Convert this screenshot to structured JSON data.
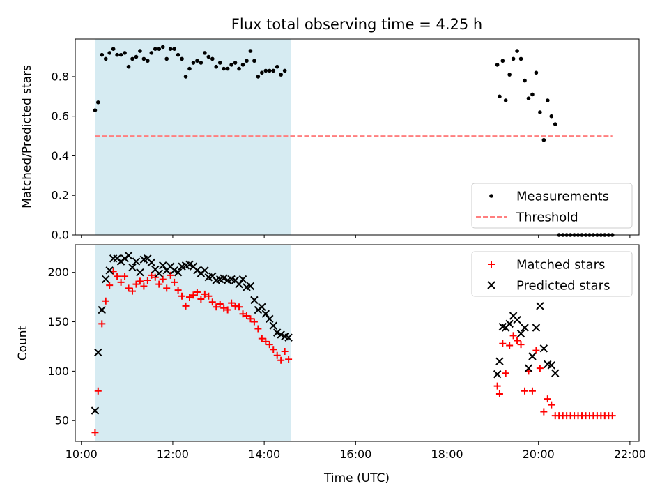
{
  "chart_data": [
    {
      "type": "scatter",
      "title": "Flux total observing time = 4.25 h",
      "xlabel": "",
      "ylabel": "Matched/Predicted stars",
      "xlim": [
        "09:52",
        "22:12"
      ],
      "ylim": [
        0.0,
        0.99
      ],
      "yticks": [
        0.0,
        0.2,
        0.4,
        0.6,
        0.8
      ],
      "xticks": [
        "10:00",
        "12:00",
        "14:00",
        "16:00",
        "18:00",
        "20:00",
        "22:00"
      ],
      "show_x_tick_labels": false,
      "shaded_span": {
        "start": "10:18",
        "end": "14:35",
        "color": "#add8e6",
        "opacity": 0.5
      },
      "legend_position": "lower-right",
      "series": [
        {
          "name": "Measurements",
          "kind": "points",
          "color": "#000000",
          "points": [
            [
              "10:18",
              0.63
            ],
            [
              "10:22",
              0.67
            ],
            [
              "10:27",
              0.91
            ],
            [
              "10:32",
              0.89
            ],
            [
              "10:37",
              0.92
            ],
            [
              "10:42",
              0.94
            ],
            [
              "10:47",
              0.91
            ],
            [
              "10:52",
              0.91
            ],
            [
              "10:57",
              0.92
            ],
            [
              "11:02",
              0.85
            ],
            [
              "11:07",
              0.89
            ],
            [
              "11:12",
              0.9
            ],
            [
              "11:17",
              0.93
            ],
            [
              "11:22",
              0.89
            ],
            [
              "11:27",
              0.88
            ],
            [
              "11:32",
              0.92
            ],
            [
              "11:37",
              0.94
            ],
            [
              "11:42",
              0.94
            ],
            [
              "11:47",
              0.95
            ],
            [
              "11:52",
              0.89
            ],
            [
              "11:57",
              0.94
            ],
            [
              "12:02",
              0.94
            ],
            [
              "12:07",
              0.91
            ],
            [
              "12:12",
              0.89
            ],
            [
              "12:17",
              0.8
            ],
            [
              "12:22",
              0.84
            ],
            [
              "12:27",
              0.87
            ],
            [
              "12:32",
              0.88
            ],
            [
              "12:37",
              0.87
            ],
            [
              "12:42",
              0.92
            ],
            [
              "12:47",
              0.9
            ],
            [
              "12:52",
              0.89
            ],
            [
              "12:57",
              0.85
            ],
            [
              "13:02",
              0.87
            ],
            [
              "13:07",
              0.84
            ],
            [
              "13:12",
              0.84
            ],
            [
              "13:17",
              0.86
            ],
            [
              "13:22",
              0.87
            ],
            [
              "13:27",
              0.84
            ],
            [
              "13:32",
              0.86
            ],
            [
              "13:37",
              0.88
            ],
            [
              "13:42",
              0.93
            ],
            [
              "13:47",
              0.88
            ],
            [
              "13:52",
              0.8
            ],
            [
              "13:57",
              0.82
            ],
            [
              "14:02",
              0.83
            ],
            [
              "14:07",
              0.83
            ],
            [
              "14:12",
              0.83
            ],
            [
              "14:17",
              0.85
            ],
            [
              "14:22",
              0.81
            ],
            [
              "14:27",
              0.83
            ],
            [
              "19:06",
              0.86
            ],
            [
              "19:09",
              0.7
            ],
            [
              "19:13",
              0.88
            ],
            [
              "19:17",
              0.68
            ],
            [
              "19:22",
              0.81
            ],
            [
              "19:27",
              0.89
            ],
            [
              "19:32",
              0.93
            ],
            [
              "19:37",
              0.89
            ],
            [
              "19:42",
              0.78
            ],
            [
              "19:47",
              0.69
            ],
            [
              "19:52",
              0.71
            ],
            [
              "19:57",
              0.82
            ],
            [
              "20:02",
              0.62
            ],
            [
              "20:07",
              0.48
            ],
            [
              "20:12",
              0.68
            ],
            [
              "20:17",
              0.6
            ],
            [
              "20:22",
              0.56
            ],
            [
              "20:27",
              0.0
            ],
            [
              "20:32",
              0.0
            ],
            [
              "20:37",
              0.0
            ],
            [
              "20:42",
              0.0
            ],
            [
              "20:47",
              0.0
            ],
            [
              "20:52",
              0.0
            ],
            [
              "20:57",
              0.0
            ],
            [
              "21:02",
              0.0
            ],
            [
              "21:07",
              0.0
            ],
            [
              "21:12",
              0.0
            ],
            [
              "21:17",
              0.0
            ],
            [
              "21:22",
              0.0
            ],
            [
              "21:27",
              0.0
            ],
            [
              "21:32",
              0.0
            ],
            [
              "21:37",
              0.0
            ]
          ]
        },
        {
          "name": "Threshold",
          "kind": "dashed-line",
          "color": "#ff7f7f",
          "points": [
            [
              "10:18",
              0.5
            ],
            [
              "21:37",
              0.5
            ]
          ]
        }
      ]
    },
    {
      "type": "scatter",
      "title": "",
      "xlabel": "Time (UTC)",
      "ylabel": "Count",
      "xlim": [
        "09:52",
        "22:12"
      ],
      "ylim": [
        29,
        228
      ],
      "yticks": [
        50,
        100,
        150,
        200
      ],
      "xticks": [
        "10:00",
        "12:00",
        "14:00",
        "16:00",
        "18:00",
        "20:00",
        "22:00"
      ],
      "show_x_tick_labels": true,
      "shaded_span": {
        "start": "10:18",
        "end": "14:35",
        "color": "#add8e6",
        "opacity": 0.5
      },
      "legend_position": "upper-right",
      "series": [
        {
          "name": "Matched stars",
          "kind": "plus",
          "color": "#ff0000",
          "points": [
            [
              "10:18",
              38
            ],
            [
              "10:22",
              80
            ],
            [
              "10:27",
              148
            ],
            [
              "10:32",
              171
            ],
            [
              "10:37",
              187
            ],
            [
              "10:42",
              201
            ],
            [
              "10:47",
              196
            ],
            [
              "10:52",
              190
            ],
            [
              "10:57",
              196
            ],
            [
              "11:02",
              184
            ],
            [
              "11:07",
              181
            ],
            [
              "11:12",
              188
            ],
            [
              "11:17",
              191
            ],
            [
              "11:22",
              186
            ],
            [
              "11:27",
              192
            ],
            [
              "11:32",
              197
            ],
            [
              "11:37",
              195
            ],
            [
              "11:42",
              188
            ],
            [
              "11:47",
              193
            ],
            [
              "11:52",
              184
            ],
            [
              "11:57",
              197
            ],
            [
              "12:02",
              190
            ],
            [
              "12:07",
              182
            ],
            [
              "12:12",
              176
            ],
            [
              "12:17",
              166
            ],
            [
              "12:22",
              175
            ],
            [
              "12:27",
              177
            ],
            [
              "12:32",
              180
            ],
            [
              "12:37",
              173
            ],
            [
              "12:42",
              178
            ],
            [
              "12:47",
              176
            ],
            [
              "12:52",
              170
            ],
            [
              "12:57",
              165
            ],
            [
              "13:02",
              168
            ],
            [
              "13:07",
              164
            ],
            [
              "13:12",
              162
            ],
            [
              "13:17",
              169
            ],
            [
              "13:22",
              166
            ],
            [
              "13:27",
              165
            ],
            [
              "13:32",
              158
            ],
            [
              "13:37",
              156
            ],
            [
              "13:42",
              153
            ],
            [
              "13:47",
              150
            ],
            [
              "13:52",
              143
            ],
            [
              "13:57",
              133
            ],
            [
              "14:02",
              130
            ],
            [
              "14:07",
              127
            ],
            [
              "14:12",
              122
            ],
            [
              "14:17",
              116
            ],
            [
              "14:22",
              111
            ],
            [
              "14:27",
              120
            ],
            [
              "14:32",
              112
            ],
            [
              "19:06",
              85
            ],
            [
              "19:09",
              77
            ],
            [
              "19:13",
              128
            ],
            [
              "19:17",
              98
            ],
            [
              "19:22",
              126
            ],
            [
              "19:27",
              136
            ],
            [
              "19:32",
              131
            ],
            [
              "19:37",
              127
            ],
            [
              "19:42",
              80
            ],
            [
              "19:47",
              100
            ],
            [
              "19:52",
              80
            ],
            [
              "19:57",
              121
            ],
            [
              "20:02",
              103
            ],
            [
              "20:07",
              59
            ],
            [
              "20:12",
              72
            ],
            [
              "20:17",
              66
            ],
            [
              "20:22",
              55
            ],
            [
              "20:27",
              55
            ],
            [
              "20:32",
              55
            ],
            [
              "20:37",
              55
            ],
            [
              "20:42",
              55
            ],
            [
              "20:47",
              55
            ],
            [
              "20:52",
              55
            ],
            [
              "20:57",
              55
            ],
            [
              "21:02",
              55
            ],
            [
              "21:07",
              55
            ],
            [
              "21:12",
              55
            ],
            [
              "21:17",
              55
            ],
            [
              "21:22",
              55
            ],
            [
              "21:27",
              55
            ],
            [
              "21:32",
              55
            ],
            [
              "21:37",
              55
            ]
          ]
        },
        {
          "name": "Predicted stars",
          "kind": "x",
          "color": "#000000",
          "points": [
            [
              "10:18",
              60
            ],
            [
              "10:22",
              119
            ],
            [
              "10:27",
              162
            ],
            [
              "10:32",
              193
            ],
            [
              "10:37",
              202
            ],
            [
              "10:42",
              214
            ],
            [
              "10:47",
              214
            ],
            [
              "10:52",
              211
            ],
            [
              "10:57",
              214
            ],
            [
              "11:02",
              217
            ],
            [
              "11:07",
              205
            ],
            [
              "11:12",
              211
            ],
            [
              "11:17",
              200
            ],
            [
              "11:22",
              213
            ],
            [
              "11:27",
              214
            ],
            [
              "11:32",
              210
            ],
            [
              "11:37",
              203
            ],
            [
              "11:42",
              199
            ],
            [
              "11:47",
              207
            ],
            [
              "11:52",
              202
            ],
            [
              "11:57",
              206
            ],
            [
              "12:02",
              202
            ],
            [
              "12:07",
              200
            ],
            [
              "12:12",
              206
            ],
            [
              "12:17",
              207
            ],
            [
              "12:22",
              208
            ],
            [
              "12:27",
              206
            ],
            [
              "12:32",
              202
            ],
            [
              "12:37",
              199
            ],
            [
              "12:42",
              202
            ],
            [
              "12:47",
              195
            ],
            [
              "12:52",
              196
            ],
            [
              "12:57",
              192
            ],
            [
              "13:02",
              193
            ],
            [
              "13:07",
              194
            ],
            [
              "13:12",
              192
            ],
            [
              "13:17",
              193
            ],
            [
              "13:22",
              192
            ],
            [
              "13:27",
              188
            ],
            [
              "13:32",
              193
            ],
            [
              "13:37",
              185
            ],
            [
              "13:42",
              186
            ],
            [
              "13:47",
              172
            ],
            [
              "13:52",
              162
            ],
            [
              "13:57",
              165
            ],
            [
              "14:02",
              158
            ],
            [
              "14:07",
              153
            ],
            [
              "14:12",
              146
            ],
            [
              "14:17",
              139
            ],
            [
              "14:22",
              137
            ],
            [
              "14:27",
              135
            ],
            [
              "14:32",
              134
            ],
            [
              "19:06",
              97
            ],
            [
              "19:09",
              110
            ],
            [
              "19:13",
              145
            ],
            [
              "19:17",
              144
            ],
            [
              "19:22",
              148
            ],
            [
              "19:27",
              156
            ],
            [
              "19:32",
              152
            ],
            [
              "19:37",
              138
            ],
            [
              "19:42",
              144
            ],
            [
              "19:47",
              103
            ],
            [
              "19:52",
              115
            ],
            [
              "19:57",
              144
            ],
            [
              "20:02",
              166
            ],
            [
              "20:07",
              123
            ],
            [
              "20:12",
              107
            ],
            [
              "20:17",
              106
            ],
            [
              "20:22",
              98
            ]
          ]
        }
      ]
    }
  ]
}
